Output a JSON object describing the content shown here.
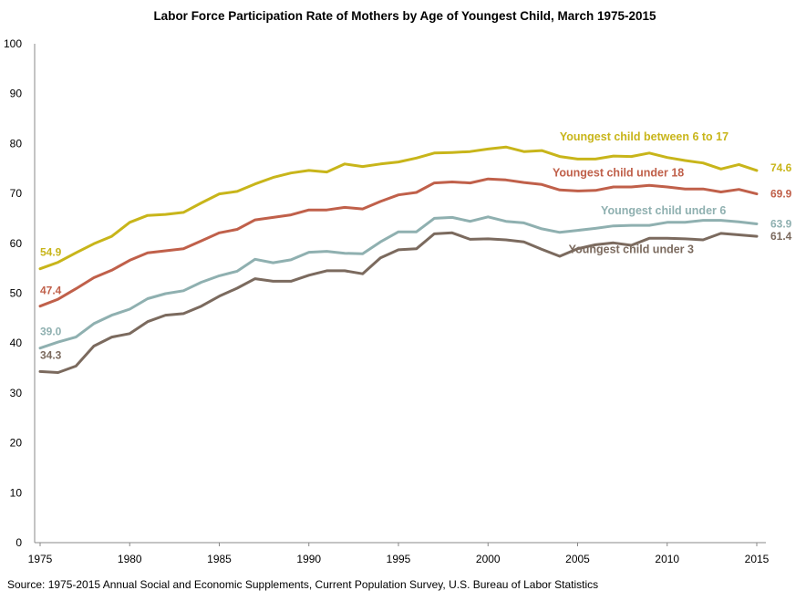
{
  "chart_data": {
    "type": "line",
    "title": "Labor Force Participation Rate of Mothers by Age of Youngest Child, March 1975-2015",
    "xlabel": "",
    "ylabel": "",
    "xlim": [
      1975,
      2015
    ],
    "ylim": [
      0,
      100
    ],
    "x_ticks": [
      1975,
      1980,
      1985,
      1990,
      1995,
      2000,
      2005,
      2010,
      2015
    ],
    "y_ticks": [
      0,
      10,
      20,
      30,
      40,
      50,
      60,
      70,
      80,
      90,
      100
    ],
    "grid": false,
    "legend": "inline labels",
    "x": [
      1975,
      1976,
      1977,
      1978,
      1979,
      1980,
      1981,
      1982,
      1983,
      1984,
      1985,
      1986,
      1987,
      1988,
      1989,
      1990,
      1991,
      1992,
      1993,
      1994,
      1995,
      1996,
      1997,
      1998,
      1999,
      2000,
      2001,
      2002,
      2003,
      2004,
      2005,
      2006,
      2007,
      2008,
      2009,
      2010,
      2011,
      2012,
      2013,
      2014,
      2015
    ],
    "series": [
      {
        "name": "Youngest child between 6 to 17",
        "color": "#c8b51a",
        "start_label": "54.9",
        "end_label": "74.6",
        "values": [
          54.9,
          56.2,
          58.1,
          59.9,
          61.4,
          64.2,
          65.6,
          65.8,
          66.2,
          68.1,
          69.9,
          70.4,
          71.9,
          73.2,
          74.1,
          74.6,
          74.3,
          75.9,
          75.4,
          75.9,
          76.3,
          77.1,
          78.1,
          78.2,
          78.4,
          78.9,
          79.3,
          78.4,
          78.6,
          77.4,
          76.9,
          76.9,
          77.5,
          77.4,
          78.1,
          77.2,
          76.6,
          76.1,
          74.9,
          75.8,
          74.6
        ]
      },
      {
        "name": "Youngest child under 18",
        "color": "#c0604a",
        "start_label": "47.4",
        "end_label": "69.9",
        "values": [
          47.4,
          48.8,
          50.9,
          53.1,
          54.6,
          56.6,
          58.1,
          58.5,
          58.9,
          60.5,
          62.1,
          62.8,
          64.7,
          65.2,
          65.7,
          66.7,
          66.7,
          67.2,
          66.9,
          68.4,
          69.7,
          70.2,
          72.1,
          72.3,
          72.1,
          72.9,
          72.7,
          72.2,
          71.8,
          70.7,
          70.5,
          70.6,
          71.3,
          71.3,
          71.6,
          71.3,
          70.9,
          70.9,
          70.3,
          70.8,
          69.9
        ]
      },
      {
        "name": "Youngest child under 6",
        "color": "#8fb0b0",
        "start_label": "39.0",
        "end_label": "63.9",
        "values": [
          39.0,
          40.2,
          41.2,
          43.9,
          45.6,
          46.8,
          48.9,
          49.9,
          50.5,
          52.2,
          53.5,
          54.4,
          56.8,
          56.1,
          56.7,
          58.2,
          58.4,
          58.0,
          57.9,
          60.3,
          62.3,
          62.3,
          65.0,
          65.2,
          64.4,
          65.3,
          64.4,
          64.1,
          62.9,
          62.2,
          62.6,
          63.0,
          63.5,
          63.6,
          63.6,
          64.2,
          64.2,
          64.6,
          64.6,
          64.3,
          63.9
        ]
      },
      {
        "name": "Youngest child under 3",
        "color": "#7b6a5e",
        "start_label": "34.3",
        "end_label": "61.4",
        "values": [
          34.3,
          34.1,
          35.4,
          39.4,
          41.2,
          41.9,
          44.3,
          45.6,
          45.9,
          47.4,
          49.4,
          51.0,
          52.9,
          52.4,
          52.4,
          53.6,
          54.5,
          54.5,
          53.9,
          57.1,
          58.7,
          58.9,
          61.9,
          62.1,
          60.8,
          60.9,
          60.7,
          60.3,
          58.8,
          57.4,
          58.9,
          59.7,
          60.1,
          59.6,
          61.0,
          61.0,
          60.9,
          60.7,
          62.0,
          61.7,
          61.4
        ]
      }
    ],
    "source": "Source: 1975-2015  Annual Social and Economic Supplements, Current Population Survey, U.S. Bureau of Labor Statistics"
  }
}
